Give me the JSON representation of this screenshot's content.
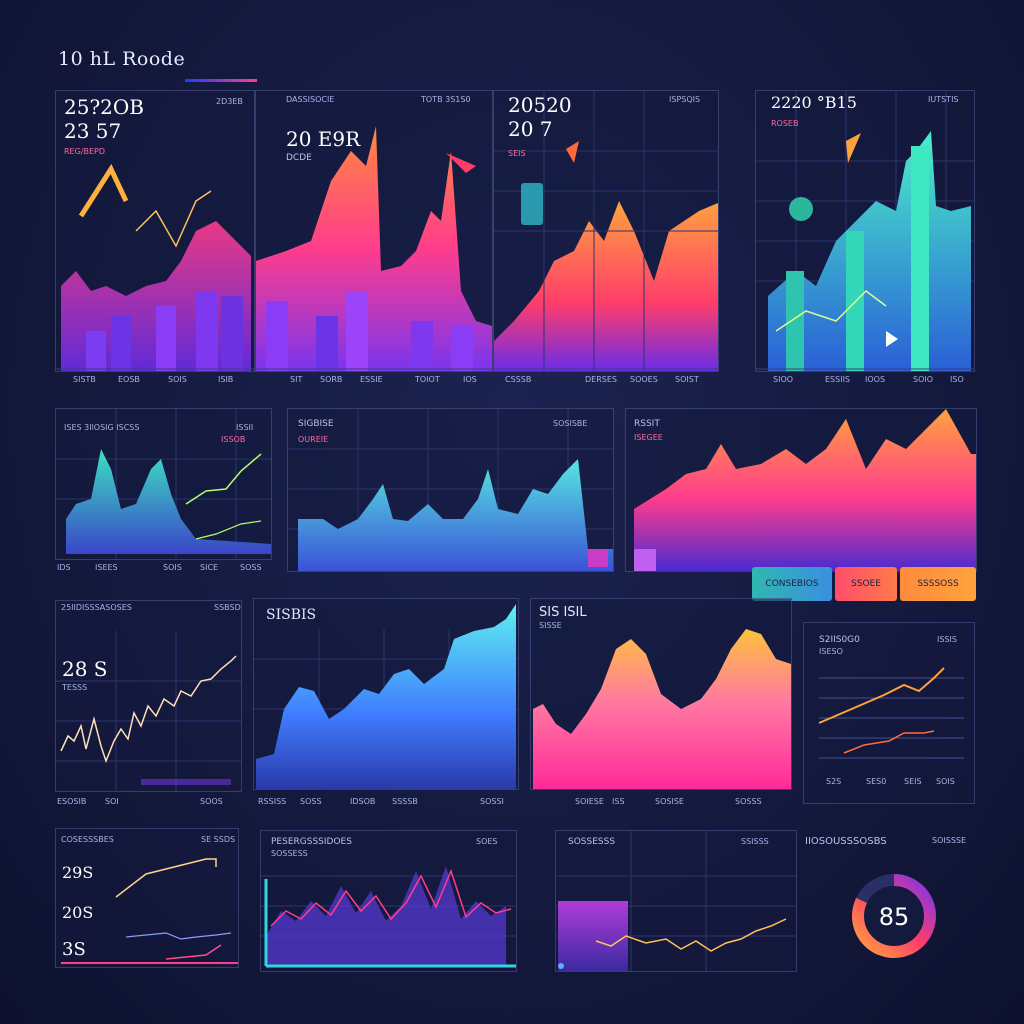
{
  "header": {
    "title": "10 hL Roode"
  },
  "panels": {
    "p1": {
      "big1": "25?2OB",
      "big2": "23 57",
      "label": "REG/BEPD",
      "topright": "2D3EB",
      "ticks": [
        "SISTB",
        "EOSB",
        "SOIS",
        "ISIB"
      ]
    },
    "p2": {
      "tl": "DASSISOCIE",
      "tr": "TOTB 3S1S0",
      "big1": "20 E9R",
      "label": "DCDE",
      "ticks": [
        "SIT",
        "SORB",
        "ESSIE",
        "TOIOT",
        "IOS"
      ]
    },
    "p3": {
      "big1": "20520",
      "big2": "20 7",
      "tr": "ISPSQIS",
      "label": "SEIS",
      "ticks": [
        "CSSSB",
        "DERSES",
        "SOOES",
        "SOIST"
      ]
    },
    "p4": {
      "big1": "2220 °B15",
      "tr": "IUTSTIS",
      "label": "ROSEB",
      "ticks": [
        "SIOO",
        "ESSIIS",
        "IOOS",
        "SOIO",
        "ISO"
      ]
    },
    "p5": {
      "tl": "ISES 3IlOSIG ISCSS",
      "tr": "ISSII",
      "label": "ISSOB",
      "ticks": [
        "IDS",
        "ISEES",
        "SOIS",
        "SICE",
        "SOSS"
      ]
    },
    "p6": {
      "tl": "SIGBISE",
      "tr": "SOSISBE",
      "label": "OUREIE"
    },
    "p7": {
      "tl": "RSSIT",
      "label": "ISEGEE"
    },
    "p8": {
      "tl": "25IIDISSSASOSES",
      "tr": "SSBSD",
      "big1": "28 S",
      "label": "TESSS",
      "ticks": [
        "ESOSIB",
        "SOI",
        "SOOS"
      ]
    },
    "p9": {
      "tl": "SISBIS",
      "ticks": [
        "RSSISS",
        "SOSS",
        "IDSOB",
        "SSSSB",
        "SOSSI"
      ]
    },
    "p10": {
      "tl": "SIS ISIL",
      "label": "SISSE",
      "ticks": [
        "SOIESE",
        "ISS",
        "SOSISE",
        "SOSSS"
      ]
    },
    "p11": {
      "tl": "S2IIS0G0",
      "tr": "ISSIS",
      "label": "ISESO",
      "ticks": [
        "S2S",
        "SES0",
        "SEIS",
        "SOIS"
      ]
    },
    "p12": {
      "tl": "COSESSSBES",
      "tr": "SE SSDS",
      "big1": "29S",
      "big2": "20S",
      "big3": "3S"
    },
    "p13": {
      "tl": "PESERGSSSIDOES",
      "tr": "SOES",
      "label": "SOSSESS"
    },
    "p14": {
      "tl": "SOSSESSS",
      "tr": "SSISSS"
    },
    "p15": {
      "tl": "IIOSOUSSSOSBS",
      "tr": "SOISSSE"
    }
  },
  "buttons": {
    "teal": "CONSEBIOS",
    "red": "SSOEE",
    "orange": "SSSSOSS"
  },
  "donut": {
    "value": "85",
    "fill": 0.82
  },
  "colors": {
    "bg": "#141a3e",
    "purple": "#7b3cf0",
    "pink": "#ff3d8b",
    "orange": "#ff9a3d",
    "teal": "#2fd6b5",
    "blue": "#3f7cff"
  }
}
